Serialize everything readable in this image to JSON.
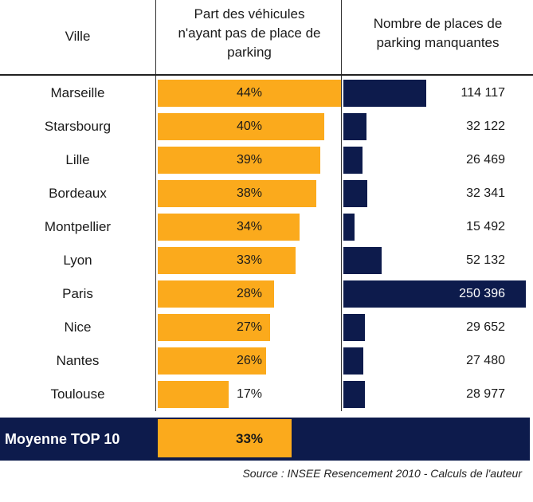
{
  "headers": {
    "ville": "Ville",
    "part_line1": "Part des véhicules",
    "part_line2": "n'ayant pas de place de",
    "part_line3": "parking",
    "places_line1": "Nombre de places de",
    "places_line2": "parking manquantes"
  },
  "colors": {
    "orange": "#FBAA1C",
    "navy": "#0D1B4C"
  },
  "chart_data": {
    "type": "table",
    "columns": [
      "Ville",
      "Part des véhicules n'ayant pas de place de parking",
      "Nombre de places de parking manquantes"
    ],
    "rows": [
      {
        "city": "Marseille",
        "pct_label": "44%",
        "pct": 44,
        "places_label": "114 117",
        "places": 114117
      },
      {
        "city": "Starsbourg",
        "pct_label": "40%",
        "pct": 40,
        "places_label": "32 122",
        "places": 32122
      },
      {
        "city": "Lille",
        "pct_label": "39%",
        "pct": 39,
        "places_label": "26 469",
        "places": 26469
      },
      {
        "city": "Bordeaux",
        "pct_label": "38%",
        "pct": 38,
        "places_label": "32 341",
        "places": 32341
      },
      {
        "city": "Montpellier",
        "pct_label": "34%",
        "pct": 34,
        "places_label": "15 492",
        "places": 15492
      },
      {
        "city": "Lyon",
        "pct_label": "33%",
        "pct": 33,
        "places_label": "52 132",
        "places": 52132
      },
      {
        "city": "Paris",
        "pct_label": "28%",
        "pct": 28,
        "places_label": "250 396",
        "places": 250396
      },
      {
        "city": "Nice",
        "pct_label": "27%",
        "pct": 27,
        "places_label": "29 652",
        "places": 29652
      },
      {
        "city": "Nantes",
        "pct_label": "26%",
        "pct": 26,
        "places_label": "27 480",
        "places": 27480
      },
      {
        "city": "Toulouse",
        "pct_label": "17%",
        "pct": 17,
        "places_label": "28 977",
        "places": 28977
      }
    ],
    "average": {
      "label": "Moyenne TOP 10",
      "pct_label": "33%",
      "pct": 33
    }
  },
  "source": "Source : INSEE Resencement 2010 - Calculs de l'auteur"
}
